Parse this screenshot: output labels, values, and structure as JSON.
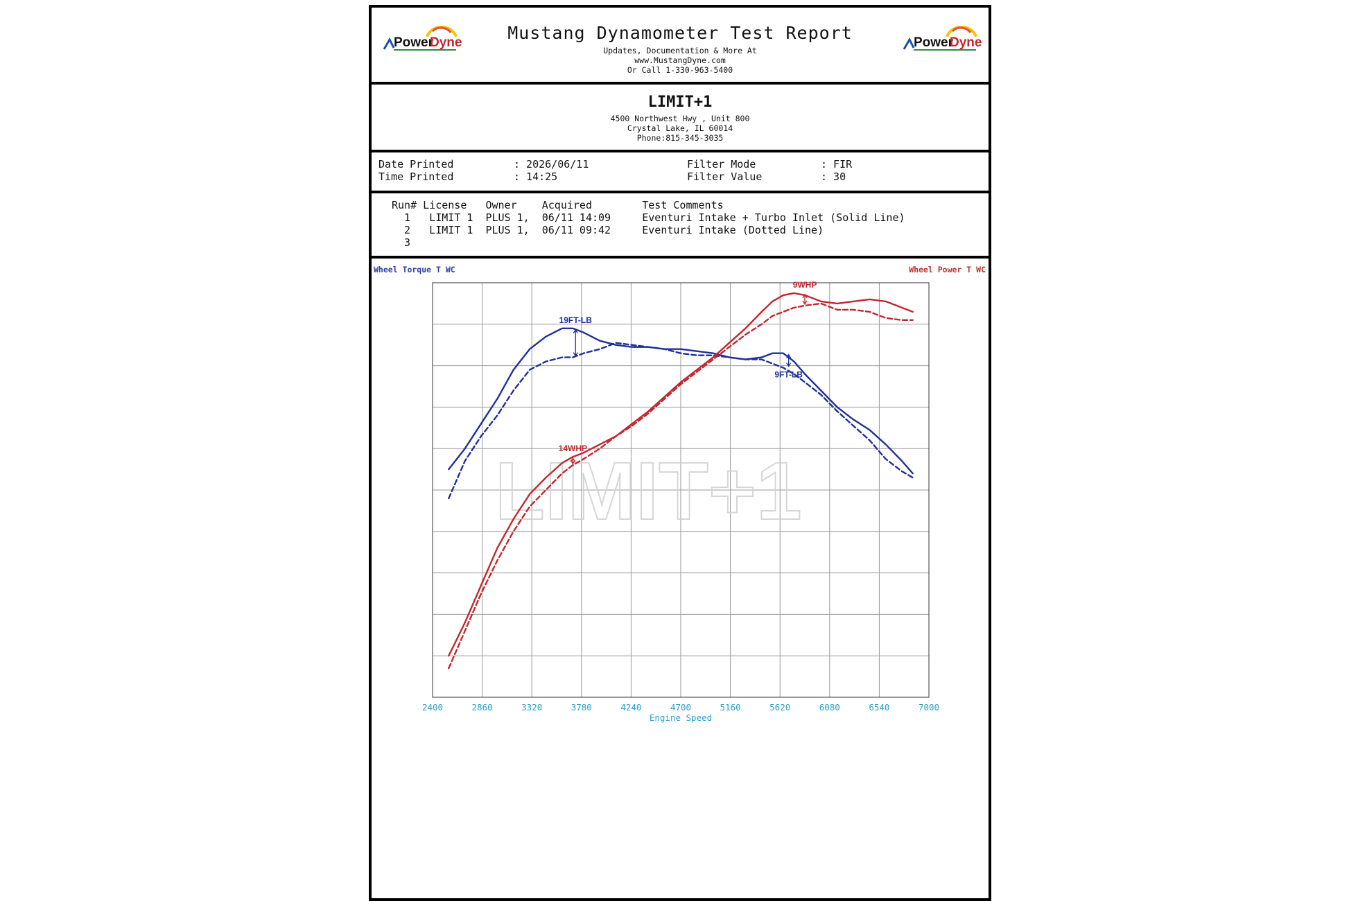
{
  "header": {
    "title": "Mustang Dynamometer Test Report",
    "line1": "Updates, Documentation & More At",
    "line2": "www.MustangDyne.com",
    "line3": "Or Call 1-330-963-5400",
    "logo_text": "PowerDyne"
  },
  "shop": {
    "name": "LIMIT+1",
    "address1": "4500 Northwest Hwy , Unit 800",
    "address2": "Crystal Lake, IL  60014",
    "phone": "Phone:815-345-3035"
  },
  "print_info": {
    "date_label": "Date Printed",
    "date_value": ": 2026/06/11",
    "time_label": "Time Printed",
    "time_value": ": 14:25",
    "filter_mode_label": "Filter Mode",
    "filter_mode_value": ": FIR",
    "filter_value_label": "Filter Value",
    "filter_value_value": ": 30"
  },
  "runs": {
    "header": "Run# License   Owner    Acquired        Test Comments",
    "rows": [
      "  1   LIMIT 1  PLUS 1,  06/11 14:09     Eventuri Intake + Turbo Inlet (Solid Line)",
      "  2   LIMIT 1  PLUS 1,  06/11 09:42     Eventuri Intake (Dotted Line)",
      "  3"
    ]
  },
  "colors": {
    "torque": "#1f2f99",
    "power": "#c0272d",
    "axis_text": "#2aa0c8",
    "grid": "#999999"
  },
  "chart_data": {
    "type": "line",
    "title": "",
    "left_axis_label": "Wheel Torque T WC",
    "right_axis_label": "Wheel Power T WC",
    "xlabel": "Engine Speed",
    "x_ticks": [
      "2400",
      "2860",
      "3320",
      "3780",
      "4240",
      "4700",
      "5160",
      "5620",
      "6080",
      "6540",
      "7000"
    ],
    "xlim": [
      2400,
      7000
    ],
    "ylim": [
      0,
      10
    ],
    "grid": true,
    "watermark": "LIMIT+1",
    "x": [
      2550,
      2700,
      2850,
      3000,
      3150,
      3300,
      3450,
      3600,
      3700,
      3800,
      3950,
      4100,
      4250,
      4400,
      4550,
      4700,
      4850,
      5000,
      5150,
      5300,
      5450,
      5550,
      5650,
      5750,
      5850,
      6000,
      6150,
      6300,
      6450,
      6600,
      6750,
      6850
    ],
    "series": [
      {
        "name": "Eventuri Intake + Turbo Inlet (Solid Line)",
        "kind": "torque",
        "style": "solid",
        "values": [
          5.5,
          6.0,
          6.6,
          7.2,
          7.9,
          8.4,
          8.7,
          8.9,
          8.9,
          8.8,
          8.6,
          8.5,
          8.45,
          8.45,
          8.4,
          8.4,
          8.35,
          8.3,
          8.2,
          8.15,
          8.2,
          8.3,
          8.3,
          8.1,
          7.8,
          7.4,
          7.0,
          6.7,
          6.45,
          6.1,
          5.7,
          5.4
        ]
      },
      {
        "name": "Eventuri Intake (Dotted Line)",
        "kind": "torque",
        "style": "dashed",
        "values": [
          4.8,
          5.7,
          6.3,
          6.8,
          7.4,
          7.9,
          8.1,
          8.2,
          8.2,
          8.3,
          8.4,
          8.55,
          8.5,
          8.45,
          8.4,
          8.3,
          8.25,
          8.25,
          8.2,
          8.15,
          8.15,
          8.05,
          7.95,
          7.8,
          7.6,
          7.3,
          6.9,
          6.55,
          6.2,
          5.75,
          5.45,
          5.3
        ]
      },
      {
        "name": "Eventuri Intake + Turbo Inlet (Solid Line)",
        "kind": "power",
        "style": "solid",
        "values": [
          1.0,
          1.8,
          2.7,
          3.6,
          4.3,
          4.9,
          5.3,
          5.65,
          5.8,
          5.9,
          6.1,
          6.3,
          6.6,
          6.9,
          7.25,
          7.6,
          7.9,
          8.2,
          8.55,
          8.9,
          9.3,
          9.55,
          9.7,
          9.75,
          9.7,
          9.55,
          9.5,
          9.55,
          9.6,
          9.55,
          9.4,
          9.3
        ]
      },
      {
        "name": "Eventuri Intake (Dotted Line)",
        "kind": "power",
        "style": "dashed",
        "values": [
          0.7,
          1.6,
          2.5,
          3.3,
          4.0,
          4.6,
          5.0,
          5.4,
          5.6,
          5.75,
          6.0,
          6.3,
          6.55,
          6.85,
          7.2,
          7.55,
          7.85,
          8.15,
          8.45,
          8.75,
          9.0,
          9.2,
          9.3,
          9.4,
          9.45,
          9.5,
          9.35,
          9.35,
          9.3,
          9.15,
          9.1,
          9.1
        ]
      }
    ],
    "annotations": [
      {
        "text": "19FT-LB",
        "kind": "torque",
        "x": 3725,
        "y_top": 8.9,
        "y_bottom": 8.2,
        "label_pos": "above"
      },
      {
        "text": "9FT-LB",
        "kind": "torque",
        "x": 5700,
        "y_top": 8.3,
        "y_bottom": 7.95,
        "label_pos": "below"
      },
      {
        "text": "14WHP",
        "kind": "power",
        "x": 3700,
        "y_top": 5.8,
        "y_bottom": 5.6,
        "label_pos": "above"
      },
      {
        "text": "9WHP",
        "kind": "power",
        "x": 5850,
        "y_top": 9.75,
        "y_bottom": 9.45,
        "label_pos": "above"
      }
    ]
  }
}
